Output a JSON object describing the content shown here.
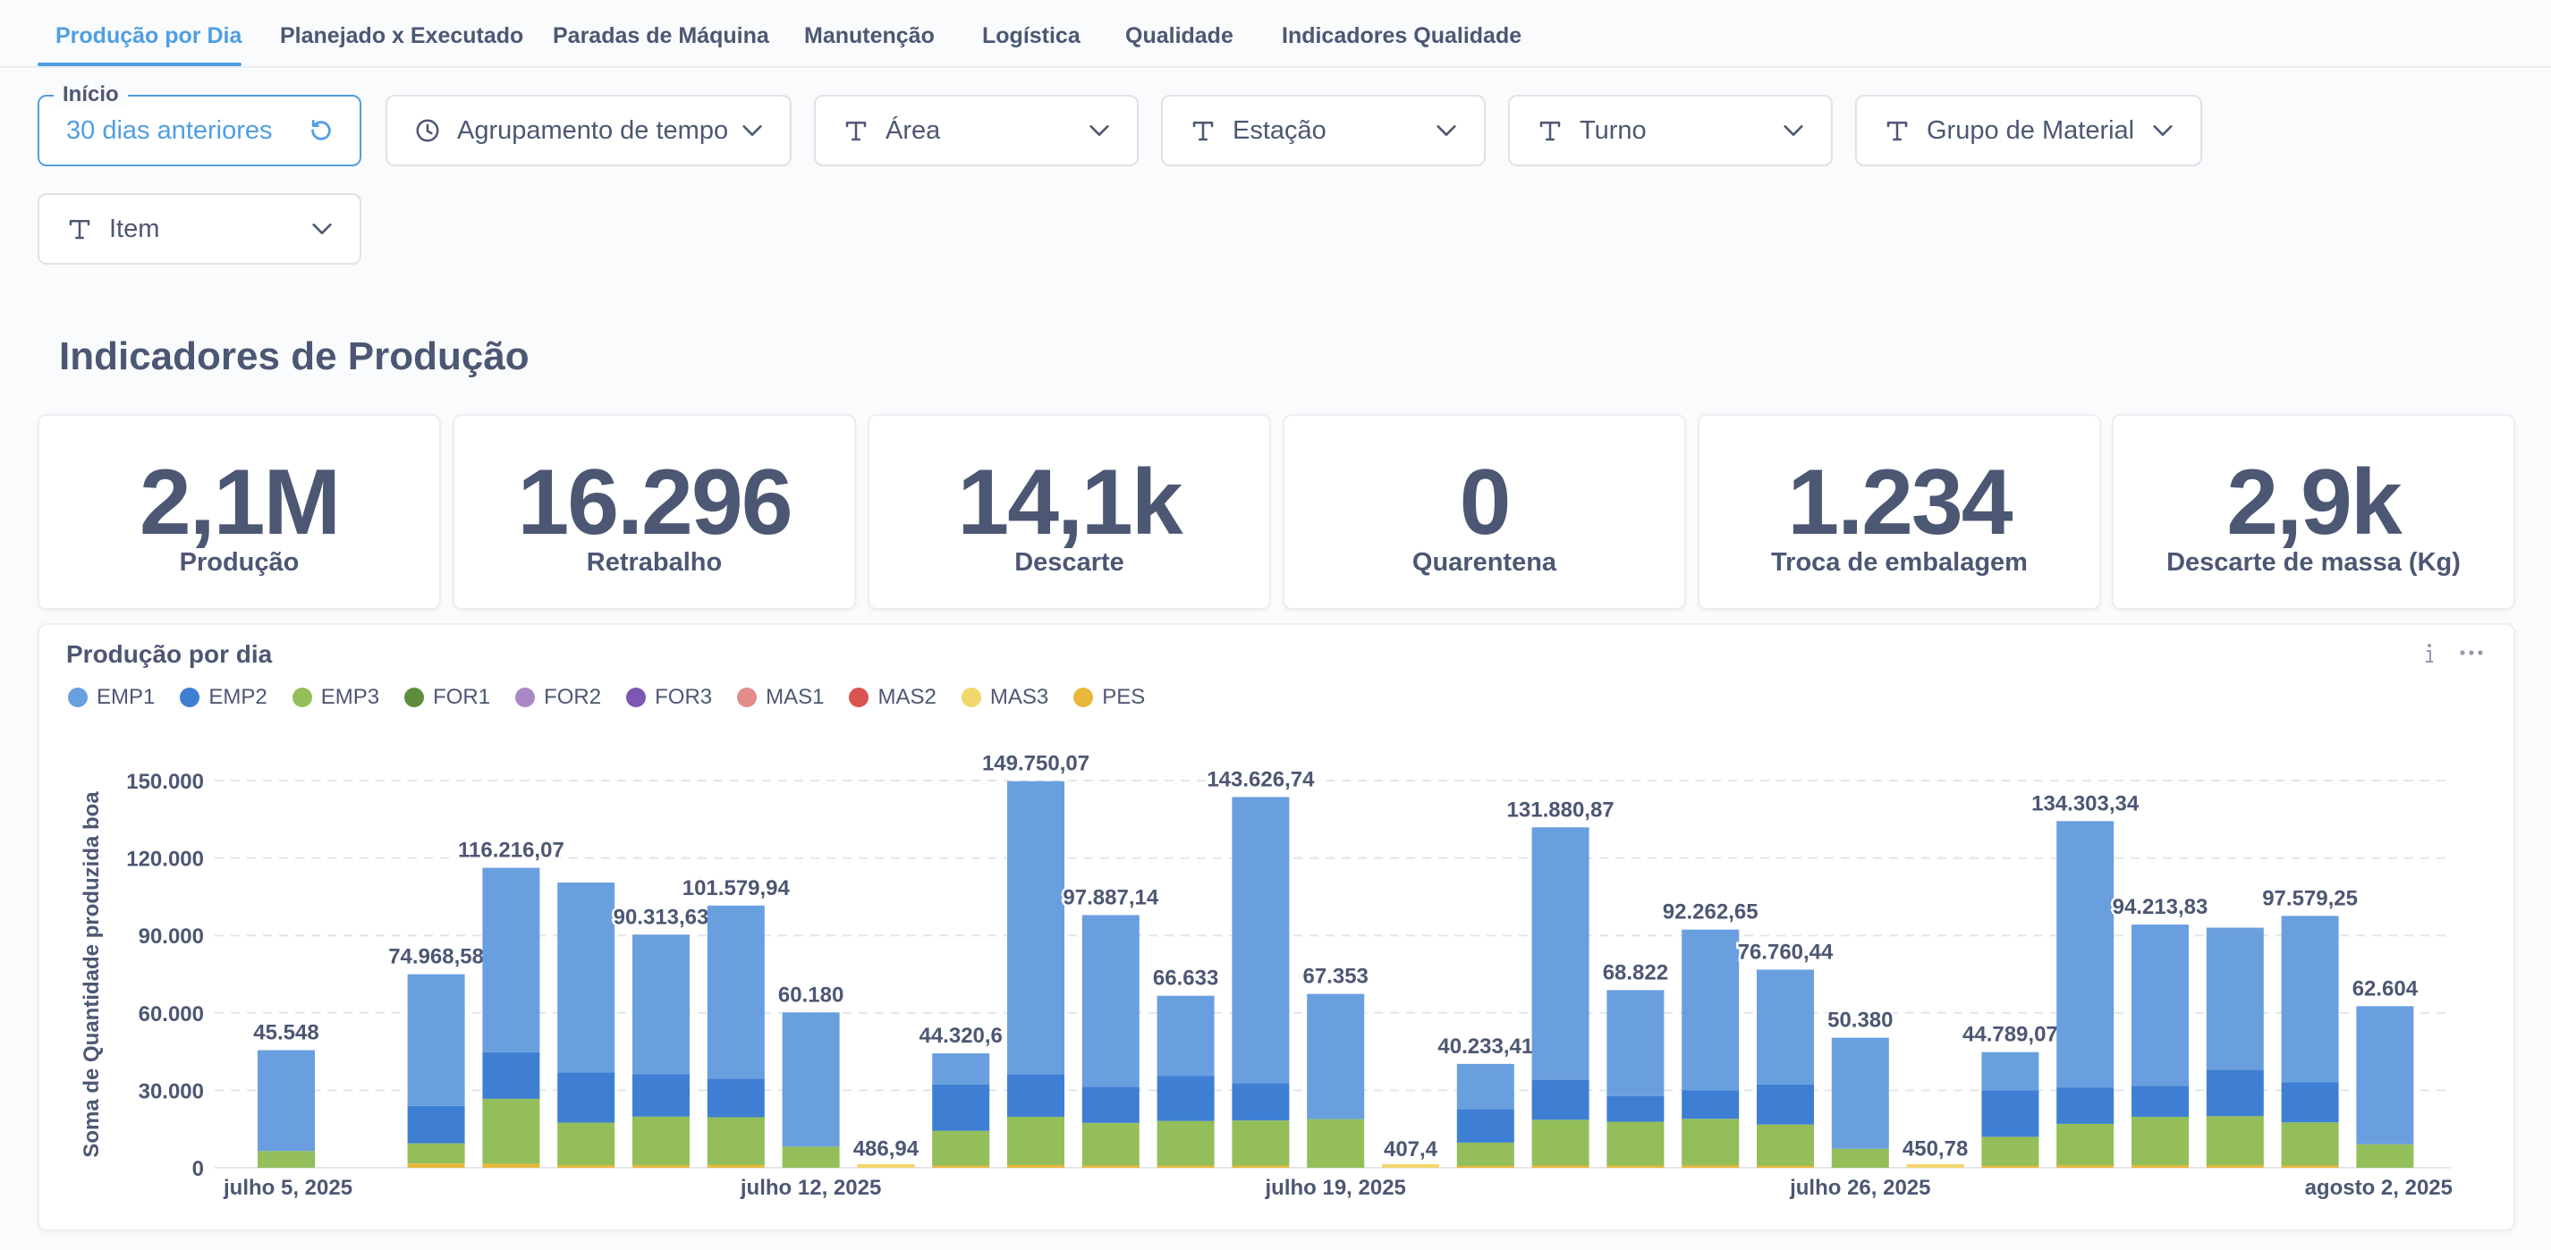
{
  "tabs": [
    {
      "label": "Produção por Dia",
      "active": true
    },
    {
      "label": "Planejado x Executado",
      "active": false
    },
    {
      "label": "Paradas de Máquina",
      "active": false
    },
    {
      "label": "Manutenção",
      "active": false
    },
    {
      "label": "Logística",
      "active": false
    },
    {
      "label": "Qualidade",
      "active": false
    },
    {
      "label": "Indicadores Qualidade",
      "active": false
    }
  ],
  "filters": {
    "inicio": {
      "caption": "Início",
      "value": "30 dias anteriores",
      "icon": "reset-icon"
    },
    "agrupamento": {
      "label": "Agrupamento de tempo",
      "icon": "clock-icon"
    },
    "area": {
      "label": "Área",
      "icon": "text-type-icon"
    },
    "estacao": {
      "label": "Estação",
      "icon": "text-type-icon"
    },
    "turno": {
      "label": "Turno",
      "icon": "text-type-icon"
    },
    "grupo_material": {
      "label": "Grupo de Material",
      "icon": "text-type-icon"
    },
    "item": {
      "label": "Item",
      "icon": "text-type-icon"
    }
  },
  "section_title": "Indicadores de Produção",
  "kpis": [
    {
      "value": "2,1M",
      "label": "Produção"
    },
    {
      "value": "16.296",
      "label": "Retrabalho"
    },
    {
      "value": "14,1k",
      "label": "Descarte"
    },
    {
      "value": "0",
      "label": "Quarentena"
    },
    {
      "value": "1.234",
      "label": "Troca de embalagem"
    },
    {
      "value": "2,9k",
      "label": "Descarte de massa (Kg)"
    }
  ],
  "chart_card": {
    "title": "Produção por dia",
    "info_icon": "info-icon",
    "more_icon": "more-icon"
  },
  "colors": {
    "accent": "#509ee3",
    "text": "#4c5773"
  },
  "chart_data": {
    "type": "bar",
    "stacked": true,
    "title": "Produção por dia",
    "xlabel": "",
    "ylabel": "Soma de Quantidade produzida boa",
    "ylim": [
      0,
      150000
    ],
    "yticks": [
      "0",
      "30.000",
      "60.000",
      "90.000",
      "120.000",
      "150.000"
    ],
    "ytick_values": [
      0,
      30000,
      60000,
      90000,
      120000,
      150000
    ],
    "grid": true,
    "legend_position": "top-left",
    "x_tick_labels": [
      {
        "day": 0,
        "label": "julho 5, 2025"
      },
      {
        "day": 7,
        "label": "julho 12, 2025"
      },
      {
        "day": 14,
        "label": "julho 19, 2025"
      },
      {
        "day": 21,
        "label": "julho 26, 2025"
      },
      {
        "day": 28,
        "label": "agosto 2, 2025"
      }
    ],
    "series": [
      {
        "name": "EMP1",
        "color": "#6a9fdf"
      },
      {
        "name": "EMP2",
        "color": "#3f7fd3"
      },
      {
        "name": "EMP3",
        "color": "#93be5a"
      },
      {
        "name": "FOR1",
        "color": "#5d8d3c"
      },
      {
        "name": "FOR2",
        "color": "#a989c5"
      },
      {
        "name": "FOR3",
        "color": "#7c58b4"
      },
      {
        "name": "MAS1",
        "color": "#e28c8c"
      },
      {
        "name": "MAS2",
        "color": "#d9534f"
      },
      {
        "name": "MAS3",
        "color": "#f3d66c"
      },
      {
        "name": "PES",
        "color": "#e9b83b"
      }
    ],
    "days": [
      {
        "day": 0,
        "total_label": "45.548",
        "total": 45548,
        "values": {
          "EMP1": 39048,
          "EMP3": 6500
        }
      },
      {
        "day": 2,
        "total_label": "74.968,58",
        "total": 74968.58,
        "values": {
          "EMP1": 51000,
          "EMP2": 14500,
          "EMP3": 7800,
          "PES": 1668.58
        }
      },
      {
        "day": 3,
        "total_label": "116.216,07",
        "total": 116216.07,
        "values": {
          "EMP1": 71500,
          "EMP2": 18000,
          "EMP3": 25200,
          "PES": 1516.07
        }
      },
      {
        "day": 4,
        "total": 110500,
        "values": {
          "EMP1": 73500,
          "EMP2": 19500,
          "EMP3": 16500,
          "PES": 1000
        }
      },
      {
        "day": 5,
        "total_label": "90.313,63",
        "total": 90313.63,
        "values": {
          "EMP1": 54000,
          "EMP2": 16500,
          "EMP3": 18800,
          "PES": 1013.63
        }
      },
      {
        "day": 6,
        "total_label": "101.579,94",
        "total": 101579.94,
        "values": {
          "EMP1": 67000,
          "EMP2": 15000,
          "EMP3": 18500,
          "PES": 1079.94
        }
      },
      {
        "day": 7,
        "total_label": "60.180",
        "total": 60180,
        "values": {
          "EMP1": 52000,
          "EMP3": 8180
        }
      },
      {
        "day": 8,
        "total_label": "486,94",
        "total": 486.94,
        "values": {
          "MAS3": 486.94
        }
      },
      {
        "day": 9,
        "total_label": "44.320,6",
        "total": 44320.6,
        "values": {
          "EMP1": 12000,
          "EMP2": 18000,
          "EMP3": 13500,
          "PES": 820.6
        }
      },
      {
        "day": 10,
        "total_label": "149.750,07",
        "total": 149750.07,
        "values": {
          "EMP1": 113500,
          "EMP2": 16500,
          "EMP3": 18700,
          "PES": 1050.07
        }
      },
      {
        "day": 11,
        "total_label": "97.887,14",
        "total": 97887.14,
        "values": {
          "EMP1": 66500,
          "EMP2": 14000,
          "EMP3": 16500,
          "PES": 887.14
        }
      },
      {
        "day": 12,
        "total_label": "66.633",
        "total": 66633,
        "values": {
          "EMP1": 31000,
          "EMP2": 17500,
          "EMP3": 17300,
          "PES": 833
        }
      },
      {
        "day": 13,
        "total_label": "143.626,74",
        "total": 143626.74,
        "values": {
          "EMP1": 110800,
          "EMP2": 14500,
          "EMP3": 17500,
          "PES": 826.74
        }
      },
      {
        "day": 14,
        "total_label": "67.353",
        "total": 67353,
        "values": {
          "EMP1": 48500,
          "EMP3": 18853
        }
      },
      {
        "day": 15,
        "total_label": "407,4",
        "total": 407.4,
        "values": {
          "MAS3": 407.4
        }
      },
      {
        "day": 16,
        "total_label": "40.233,41",
        "total": 40233.41,
        "values": {
          "EMP1": 17500,
          "EMP2": 13000,
          "EMP3": 9000,
          "PES": 733.41
        }
      },
      {
        "day": 17,
        "total_label": "131.880,87",
        "total": 131880.87,
        "values": {
          "EMP1": 97800,
          "EMP2": 15500,
          "EMP3": 17700,
          "PES": 880.87
        }
      },
      {
        "day": 18,
        "total_label": "68.822",
        "total": 68822,
        "values": {
          "EMP1": 41000,
          "EMP2": 10000,
          "EMP3": 17000,
          "PES": 822
        }
      },
      {
        "day": 19,
        "total_label": "92.262,65",
        "total": 92262.65,
        "values": {
          "EMP1": 62300,
          "EMP2": 11000,
          "EMP3": 18000,
          "PES": 962.65
        }
      },
      {
        "day": 20,
        "total_label": "76.760,44",
        "total": 76760.44,
        "values": {
          "EMP1": 44500,
          "EMP2": 15500,
          "EMP3": 16000,
          "PES": 760.44
        }
      },
      {
        "day": 21,
        "total_label": "50.380",
        "total": 50380,
        "values": {
          "EMP1": 43000,
          "EMP3": 7380
        }
      },
      {
        "day": 22,
        "total_label": "450,78",
        "total": 450.78,
        "values": {
          "MAS3": 450.78
        }
      },
      {
        "day": 23,
        "total_label": "44.789,07",
        "total": 44789.07,
        "values": {
          "EMP1": 14800,
          "EMP2": 18000,
          "EMP3": 11200,
          "PES": 789.07
        }
      },
      {
        "day": 24,
        "total_label": "134.303,34",
        "total": 134303.34,
        "values": {
          "EMP1": 103300,
          "EMP2": 14000,
          "EMP3": 16000,
          "PES": 1003.34
        }
      },
      {
        "day": 25,
        "total_label": "94.213,83",
        "total": 94213.83,
        "values": {
          "EMP1": 62500,
          "EMP2": 12000,
          "EMP3": 18700,
          "PES": 1013.83
        }
      },
      {
        "day": 26,
        "total": 93000,
        "values": {
          "EMP1": 55000,
          "EMP2": 18000,
          "EMP3": 19000,
          "PES": 1000
        }
      },
      {
        "day": 27,
        "total_label": "97.579,25",
        "total": 97579.25,
        "values": {
          "EMP1": 64500,
          "EMP2": 15500,
          "EMP3": 16700,
          "PES": 879.25
        }
      },
      {
        "day": 28,
        "total_label": "62.604",
        "total": 62604,
        "values": {
          "EMP1": 53500,
          "EMP3": 9104
        }
      }
    ]
  }
}
